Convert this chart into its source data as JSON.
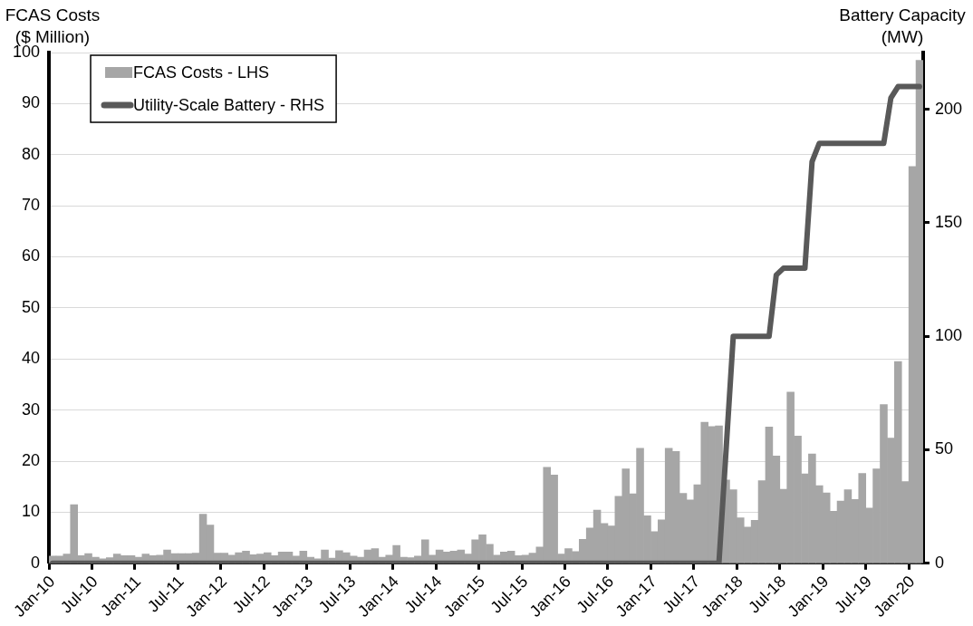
{
  "chart_data": {
    "type": "bar",
    "ylabel": "FCAS Costs\n($ Million)",
    "y2label": "Battery Capacity\n(MW)",
    "categories": [
      "Jan-10",
      null,
      null,
      null,
      null,
      null,
      "Jul-10",
      null,
      null,
      null,
      null,
      null,
      "Jan-11",
      null,
      null,
      null,
      null,
      null,
      "Jul-11",
      null,
      null,
      null,
      null,
      null,
      "Jan-12",
      null,
      null,
      null,
      null,
      null,
      "Jul-12",
      null,
      null,
      null,
      null,
      null,
      "Jan-13",
      null,
      null,
      null,
      null,
      null,
      "Jul-13",
      null,
      null,
      null,
      null,
      null,
      "Jan-14",
      null,
      null,
      null,
      null,
      null,
      "Jul-14",
      null,
      null,
      null,
      null,
      null,
      "Jan-15",
      null,
      null,
      null,
      null,
      null,
      "Jul-15",
      null,
      null,
      null,
      null,
      null,
      "Jan-16",
      null,
      null,
      null,
      null,
      null,
      "Jul-16",
      null,
      null,
      null,
      null,
      null,
      "Jan-17",
      null,
      null,
      null,
      null,
      null,
      "Jul-17",
      null,
      null,
      null,
      null,
      null,
      "Jan-18",
      null,
      null,
      null,
      null,
      null,
      "Jul-18",
      null,
      null,
      null,
      null,
      null,
      "Jan-19",
      null,
      null,
      null,
      null,
      null,
      "Jul-19",
      null,
      null,
      null,
      null,
      null,
      "Jan-20",
      null
    ],
    "series": [
      {
        "name": "FCAS Costs - LHS",
        "color": "#a6a6a6",
        "values": [
          1.4,
          1.4,
          1.8,
          11.5,
          1.5,
          1.9,
          1.2,
          0.9,
          1.1,
          1.8,
          1.5,
          1.5,
          1.2,
          1.8,
          1.5,
          1.6,
          2.6,
          1.9,
          1.9,
          1.9,
          2.0,
          9.6,
          7.5,
          2.0,
          2.0,
          1.6,
          2.1,
          2.4,
          1.7,
          1.8,
          2.1,
          1.5,
          2.2,
          2.2,
          1.4,
          2.4,
          1.2,
          0.9,
          2.6,
          1.0,
          2.5,
          2.1,
          1.4,
          1.2,
          2.6,
          2.9,
          1.2,
          1.6,
          3.5,
          1.2,
          1.1,
          1.4,
          4.6,
          1.6,
          2.6,
          2.2,
          2.4,
          2.6,
          1.8,
          4.6,
          5.6,
          3.7,
          1.6,
          2.2,
          2.4,
          1.5,
          1.6,
          2.0,
          3.2,
          18.8,
          17.3,
          1.8,
          2.9,
          2.3,
          4.7,
          6.9,
          10.4,
          7.8,
          7.3,
          13.1,
          18.5,
          13.6,
          22.5,
          9.3,
          6.2,
          8.5,
          22.5,
          21.9,
          13.7,
          12.4,
          15.4,
          27.6,
          26.8,
          26.9,
          16.3,
          14.4,
          8.9,
          7.1,
          8.4,
          16.2,
          26.7,
          21.0,
          14.5,
          33.5,
          24.9,
          17.5,
          21.4,
          15.2,
          13.8,
          10.2,
          12.2,
          14.4,
          12.5,
          17.6,
          10.8,
          18.5,
          31.1,
          24.5,
          39.5,
          16.0,
          77.7,
          98.5
        ]
      },
      {
        "name": "Utility-Scale Battery - RHS",
        "type": "line",
        "axis": "y2",
        "color": "#595959",
        "values": [
          0,
          0,
          0,
          0,
          0,
          0,
          0,
          0,
          0,
          0,
          0,
          0,
          0,
          0,
          0,
          0,
          0,
          0,
          0,
          0,
          0,
          0,
          0,
          0,
          0,
          0,
          0,
          0,
          0,
          0,
          0,
          0,
          0,
          0,
          0,
          0,
          0,
          0,
          0,
          0,
          0,
          0,
          0,
          0,
          0,
          0,
          0,
          0,
          0,
          0,
          0,
          0,
          0,
          0,
          0,
          0,
          0,
          0,
          0,
          0,
          0,
          0,
          0,
          0,
          0,
          0,
          0,
          0,
          0,
          0,
          0,
          0,
          0,
          0,
          0,
          0,
          0,
          0,
          0,
          0,
          0,
          0,
          0,
          0,
          0,
          0,
          0,
          0,
          0,
          0,
          0,
          0,
          0,
          0,
          50,
          100,
          100,
          100,
          100,
          100,
          100,
          127,
          130,
          130,
          130,
          130,
          177,
          185,
          185,
          185,
          185,
          185,
          185,
          185,
          185,
          185,
          185,
          205,
          210,
          210,
          210,
          210
        ]
      }
    ],
    "ylim": [
      0,
      100
    ],
    "yticks": [
      0,
      10,
      20,
      30,
      40,
      50,
      60,
      70,
      80,
      90,
      100
    ],
    "y2lim": [
      0,
      225
    ],
    "y2ticks": [
      0,
      50,
      100,
      150,
      200
    ],
    "grid": "y",
    "legend": "top left",
    "marker": "none",
    "line_style": "solid"
  }
}
